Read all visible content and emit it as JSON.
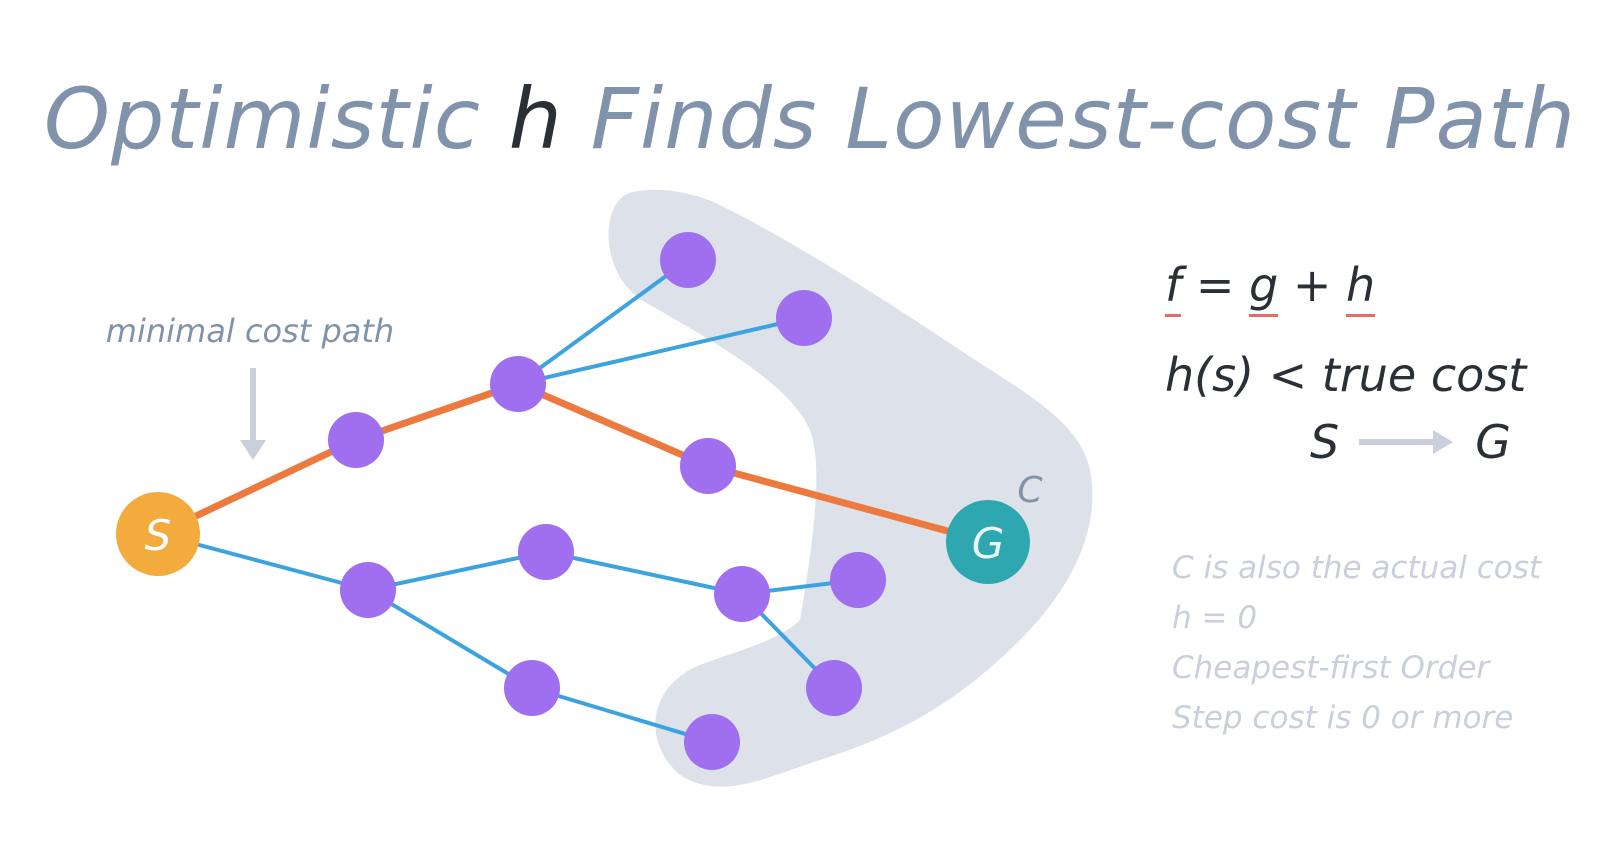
{
  "title": {
    "part1": "Optimistic ",
    "highlight": "h",
    "part2": " Finds Lowest-cost Path"
  },
  "labels": {
    "minimal_cost_path": "minimal cost path",
    "c_label": "C"
  },
  "nodes": {
    "start": "S",
    "goal": "G"
  },
  "equations": {
    "f": "f",
    "eq": "=",
    "g": "g",
    "plus": "+",
    "h": "h",
    "h_line": "h(s) < true cost",
    "s": "S",
    "g_node": "G"
  },
  "notes": [
    "C is also the actual cost",
    "h = 0",
    "Cheapest-first Order",
    "Step cost is 0 or more"
  ],
  "colors": {
    "purple_node": "#a06ff0",
    "start_node": "#f2ab3c",
    "goal_node": "#2fa7b1",
    "optimal_edge": "#ec7a3f",
    "other_edge": "#3ca3e0",
    "region": "#dde2ea",
    "title": "#8193ab",
    "notes": "#c9d0db"
  }
}
